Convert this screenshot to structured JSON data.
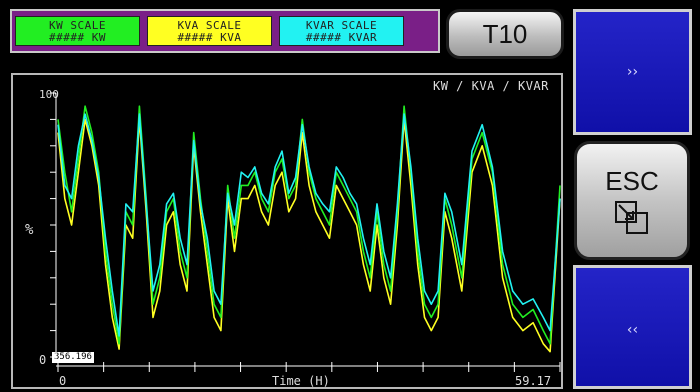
{
  "scales": {
    "kw": {
      "line1": "KW SCALE",
      "line2": "##### KW",
      "color": "#22ee22"
    },
    "kva": {
      "line1": "KVA SCALE",
      "line2": "##### KVA",
      "color": "#ffff22"
    },
    "kvar": {
      "line1": "KVAR SCALE",
      "line2": "##### KVAR",
      "color": "#22f2f2"
    }
  },
  "t10_label": "T10",
  "next_label": "››",
  "prev_label": "‹‹",
  "esc_label": "ESC",
  "chart_data": {
    "type": "line",
    "units_label": "KW / KVA / KVAR",
    "ylabel": "%",
    "y_top_tick": "100",
    "y_bottom_tick": "0",
    "xlabel": "Time (H)",
    "x_start": "0",
    "x_end": "59.17",
    "readout": "356.196",
    "x": [
      0,
      0.8,
      1.6,
      2.4,
      3.2,
      4.0,
      4.8,
      5.6,
      6.4,
      7.2,
      8.0,
      8.8,
      9.6,
      10.4,
      11.2,
      12.0,
      12.8,
      13.6,
      14.4,
      15.2,
      16.0,
      16.8,
      17.6,
      18.4,
      19.2,
      20.0,
      20.8,
      21.6,
      22.4,
      23.2,
      24.0,
      24.8,
      25.6,
      26.4,
      27.2,
      28.0,
      28.8,
      29.6,
      30.4,
      31.2,
      32.0,
      32.8,
      33.6,
      34.4,
      35.2,
      36.0,
      36.8,
      37.6,
      38.4,
      39.2,
      40.0,
      40.8,
      41.6,
      42.4,
      43.2,
      44.0,
      44.8,
      45.6,
      46.4,
      47.6,
      48.8,
      50.0,
      51.2,
      52.4,
      53.6,
      54.8,
      56.0,
      57.2,
      58.0,
      59.17
    ],
    "series": [
      {
        "color": "#22ee22",
        "values": [
          90,
          70,
          55,
          75,
          95,
          85,
          70,
          40,
          20,
          5,
          55,
          50,
          95,
          60,
          20,
          30,
          55,
          60,
          40,
          30,
          85,
          60,
          40,
          20,
          15,
          65,
          45,
          65,
          65,
          70,
          60,
          55,
          70,
          75,
          60,
          65,
          90,
          70,
          60,
          55,
          50,
          70,
          65,
          60,
          55,
          40,
          30,
          55,
          35,
          25,
          55,
          95,
          70,
          40,
          20,
          15,
          20,
          60,
          50,
          30,
          75,
          85,
          70,
          35,
          20,
          15,
          18,
          10,
          5,
          65
        ]
      },
      {
        "color": "#ffff22",
        "values": [
          85,
          60,
          50,
          70,
          90,
          80,
          65,
          35,
          15,
          3,
          50,
          45,
          90,
          55,
          15,
          25,
          50,
          55,
          35,
          25,
          80,
          55,
          35,
          15,
          10,
          60,
          40,
          60,
          60,
          65,
          55,
          50,
          65,
          70,
          55,
          60,
          85,
          65,
          55,
          50,
          45,
          65,
          60,
          55,
          50,
          35,
          25,
          50,
          30,
          20,
          50,
          90,
          65,
          35,
          15,
          10,
          15,
          55,
          45,
          25,
          70,
          80,
          65,
          30,
          15,
          10,
          13,
          5,
          2,
          60
        ]
      },
      {
        "color": "#22f2f2",
        "values": [
          88,
          65,
          60,
          80,
          92,
          82,
          68,
          45,
          25,
          8,
          58,
          55,
          92,
          58,
          25,
          35,
          58,
          62,
          45,
          35,
          82,
          58,
          45,
          25,
          20,
          62,
          50,
          70,
          68,
          72,
          62,
          58,
          72,
          78,
          62,
          68,
          88,
          72,
          62,
          58,
          55,
          72,
          68,
          62,
          58,
          45,
          35,
          58,
          40,
          30,
          58,
          92,
          72,
          45,
          25,
          20,
          25,
          62,
          55,
          35,
          78,
          88,
          72,
          40,
          25,
          20,
          22,
          15,
          10,
          60
        ]
      }
    ]
  }
}
